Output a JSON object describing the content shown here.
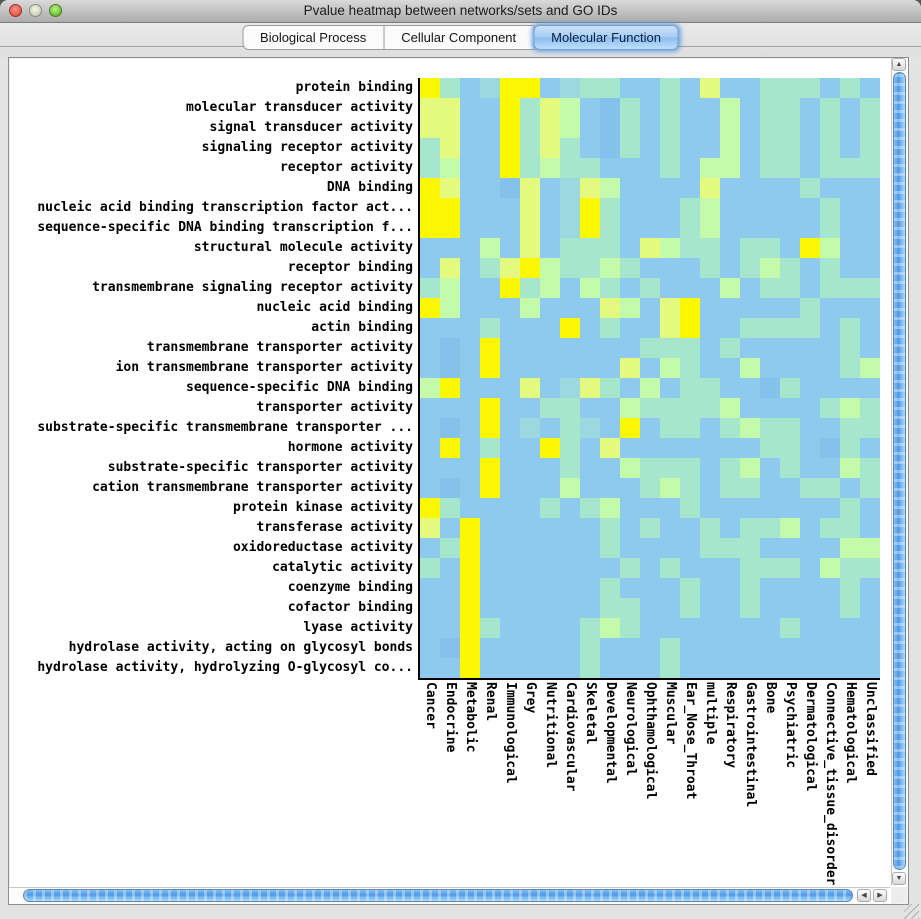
{
  "window": {
    "title": "Pvalue heatmap between networks/sets and GO IDs"
  },
  "tabs": [
    {
      "label": "Biological Process",
      "selected": false
    },
    {
      "label": "Cellular Component",
      "selected": false
    },
    {
      "label": "Molecular Function",
      "selected": true
    }
  ],
  "accent_colors": {
    "selected_tab_fill": "#A7CCF3",
    "selected_tab_glow": "#6FA0D8",
    "scrollbar_thumb_blue": "#4E97E4"
  },
  "chart_data": {
    "type": "heatmap",
    "title": "Pvalue heatmap between networks/sets and GO IDs",
    "rows": [
      "protein binding",
      "molecular transducer activity",
      "signal transducer activity",
      "signaling receptor activity",
      "receptor activity",
      "DNA binding",
      "nucleic acid binding transcription factor act...",
      "sequence-specific DNA binding transcription f...",
      "structural molecule activity",
      "receptor binding",
      "transmembrane signaling receptor activity",
      "nucleic acid binding",
      "actin binding",
      "transmembrane transporter activity",
      "ion transmembrane transporter activity",
      "sequence-specific DNA binding",
      "transporter activity",
      "substrate-specific transmembrane transporter ...",
      "hormone activity",
      "substrate-specific transporter activity",
      "cation transmembrane transporter activity",
      "protein kinase activity",
      "transferase activity",
      "oxidoreductase activity",
      "catalytic activity",
      "coenzyme binding",
      "cofactor binding",
      "lyase activity",
      "hydrolase activity, acting on glycosyl bonds",
      "hydrolase activity, hydrolyzing O-glycosyl co..."
    ],
    "columns": [
      "Cancer",
      "Endocrine",
      "Metabolic",
      "Renal",
      "Immunological",
      "Grey",
      "Nutritional",
      "Cardiovascular",
      "Skeletal",
      "Developmental",
      "Neurological",
      "Ophthamological",
      "Muscular",
      "Ear_Nose_Throat",
      "multiple",
      "Respiratory",
      "Gastrointestinal",
      "Bone",
      "Psychiatric",
      "Dermatological",
      "Connective_tissue_disorder",
      "Hematological",
      "Unclassified"
    ],
    "value_encoding": "letter bins from most significant p-value (Y, bright yellow) through pale yellow-green (y), mint green (g), aqua (a, A) to non-significant baseline light blue (b, B)",
    "palette": {
      "Y": "#FCF702",
      "y": "#E4FA7E",
      "g": "#C3FBAB",
      "a": "#A6E6CD",
      "A": "#9BD8DF",
      "b": "#8DCAEE",
      "B": "#84C2EC"
    },
    "cells": [
      "YabAYYbAaabbabybbaaabab",
      "yybbYaygbBababbgbaababa",
      "yybbYaygbBababbgbaababa",
      "aybbYayabBababbgbaababa",
      "agbbYagaabbbabggbaabaaa",
      "YybbBybAygbbbbybbbbabbb",
      "YYbbbybAYabbbagbbbbbabb",
      "YYbbbybAYabbbagbbbbbabb",
      "bbbgbybaaabygaabaabYgbb",
      "bybayYgaagabbbabagababb",
      "agbbYagbgababbbgbaabaaa",
      "YgbbbgbbbygbyYbbbbbabbb",
      "bbbabbbYbabbyYbbaaaabab",
      "bBbYbbbbbbbaaababbbbbab",
      "bBbYbbbbbbybgabbgbbbbag",
      "gYbbbybAyabgbaabbBabbbb",
      "bbbYbbaabbgaaaagbbbbaga",
      "bBbYbAbaAbYbaabagaabbaa",
      "bYbabbYabybbbbbbbaabBab",
      "bbbYbbbabbgaaabagbabbga",
      "bBbYbbbgbbbagabaabbaaba",
      "Yabbbbabagbbbabbbbbbbab",
      "ybYbbbbbbababbabaagbaab",
      "baYbbbbbbabbbbaaabbbbgg",
      "abYbbbbbbbababbbaaabgaa",
      "bbYbbbbbbabbbabbabbbbab",
      "bbYbbbbbbaabbabbabbbbab",
      "bbYabbbbagabbbbbbbabbbb",
      "bBYbbbbbabbbabbbbbbbbbb",
      "bbYbbbbbabbbabbbbbbbbbb"
    ]
  },
  "scrollbars": {
    "up_arrow": "▲",
    "down_arrow": "▼",
    "left_arrow": "◀",
    "right_arrow": "▶"
  }
}
